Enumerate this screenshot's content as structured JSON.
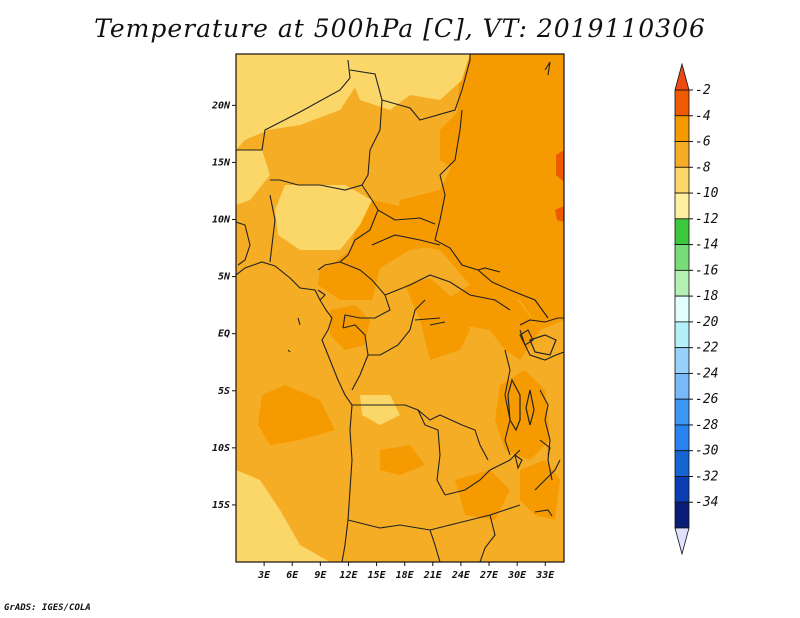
{
  "title": "Temperature at 500hPa [C], VT: 2019110306",
  "credit": "GrADS: IGES/COLA",
  "map": {
    "projection": "latlon",
    "lon_range": [
      0,
      35
    ],
    "lat_range": [
      -20,
      24.5
    ],
    "lat_ticks": [
      {
        "value": 20,
        "label": "20N"
      },
      {
        "value": 15,
        "label": "15N"
      },
      {
        "value": 10,
        "label": "10N"
      },
      {
        "value": 5,
        "label": "5N"
      },
      {
        "value": 0,
        "label": "EQ"
      },
      {
        "value": -5,
        "label": "5S"
      },
      {
        "value": -10,
        "label": "10S"
      },
      {
        "value": -15,
        "label": "15S"
      }
    ],
    "lon_ticks": [
      {
        "value": 3,
        "label": "3E"
      },
      {
        "value": 6,
        "label": "6E"
      },
      {
        "value": 9,
        "label": "9E"
      },
      {
        "value": 12,
        "label": "12E"
      },
      {
        "value": 15,
        "label": "15E"
      },
      {
        "value": 18,
        "label": "18E"
      },
      {
        "value": 21,
        "label": "21E"
      },
      {
        "value": 24,
        "label": "24E"
      },
      {
        "value": 27,
        "label": "27E"
      },
      {
        "value": 30,
        "label": "30E"
      },
      {
        "value": 33,
        "label": "33E"
      }
    ]
  },
  "colorbar": {
    "bins": [
      {
        "label": "-2",
        "color": "#ee5a00"
      },
      {
        "label": "-4",
        "color": "#f59a00"
      },
      {
        "label": "-6",
        "color": "#f6ad26"
      },
      {
        "label": "-8",
        "color": "#fbd668"
      },
      {
        "label": "-10",
        "color": "#fff0a0"
      },
      {
        "label": "-12",
        "color": "#3cc83c"
      },
      {
        "label": "-14",
        "color": "#78dc78"
      },
      {
        "label": "-16",
        "color": "#b4f0b4"
      },
      {
        "label": "-18",
        "color": "#e1ffff"
      },
      {
        "label": "-20",
        "color": "#b4f0fa"
      },
      {
        "label": "-22",
        "color": "#96d2fa"
      },
      {
        "label": "-24",
        "color": "#78b9fa"
      },
      {
        "label": "-26",
        "color": "#3c97f5"
      },
      {
        "label": "-28",
        "color": "#2882f0"
      },
      {
        "label": "-30",
        "color": "#1464d2"
      },
      {
        "label": "-32",
        "color": "#0a3cb4"
      },
      {
        "label": "-34",
        "color": "#0a1e78"
      }
    ],
    "top_triangle_color": "#ee4a10",
    "bottom_triangle_color": "#e1e1ff"
  },
  "fields": {
    "base_color": "#f6ad26",
    "warm_color": "#f59a00",
    "cool_color": "#fbd668",
    "hot_color": "#ee5a00",
    "border_color": "#222222"
  }
}
